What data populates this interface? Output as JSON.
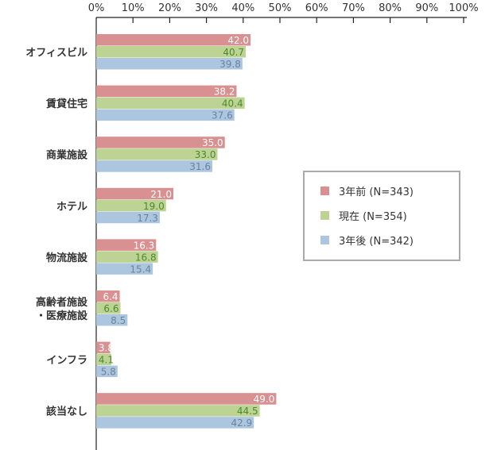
{
  "chart_data": {
    "type": "bar",
    "orientation": "horizontal",
    "xlim": [
      0,
      100
    ],
    "x_ticks": [
      "0%",
      "10%",
      "20%",
      "30%",
      "40%",
      "50%",
      "60%",
      "70%",
      "80%",
      "90%",
      "100%"
    ],
    "categories": [
      [
        "オフィスビル"
      ],
      [
        "賃貸住宅"
      ],
      [
        "商業施設"
      ],
      [
        "ホテル"
      ],
      [
        "物流施設"
      ],
      [
        "高齢者施設",
        "・医療施設"
      ],
      [
        "インフラ"
      ],
      [
        "該当なし"
      ]
    ],
    "series": [
      {
        "name": "3年前 (N=343)",
        "color": "#d99090",
        "label_color": "#ffffff",
        "values": [
          42.0,
          38.2,
          35.0,
          21.0,
          16.3,
          6.4,
          3.8,
          49.0
        ]
      },
      {
        "name": "現在 (N=354)",
        "color": "#bdd394",
        "label_color": "#4a8a2a",
        "values": [
          40.7,
          40.4,
          33.0,
          19.0,
          16.8,
          6.6,
          4.1,
          44.5
        ]
      },
      {
        "name": "3年後 (N=342)",
        "color": "#adc6e0",
        "label_color": "#6a819e",
        "values": [
          39.8,
          37.6,
          31.6,
          17.3,
          15.4,
          8.5,
          5.8,
          42.9
        ]
      }
    ],
    "legend_position": "right",
    "grid": false
  }
}
